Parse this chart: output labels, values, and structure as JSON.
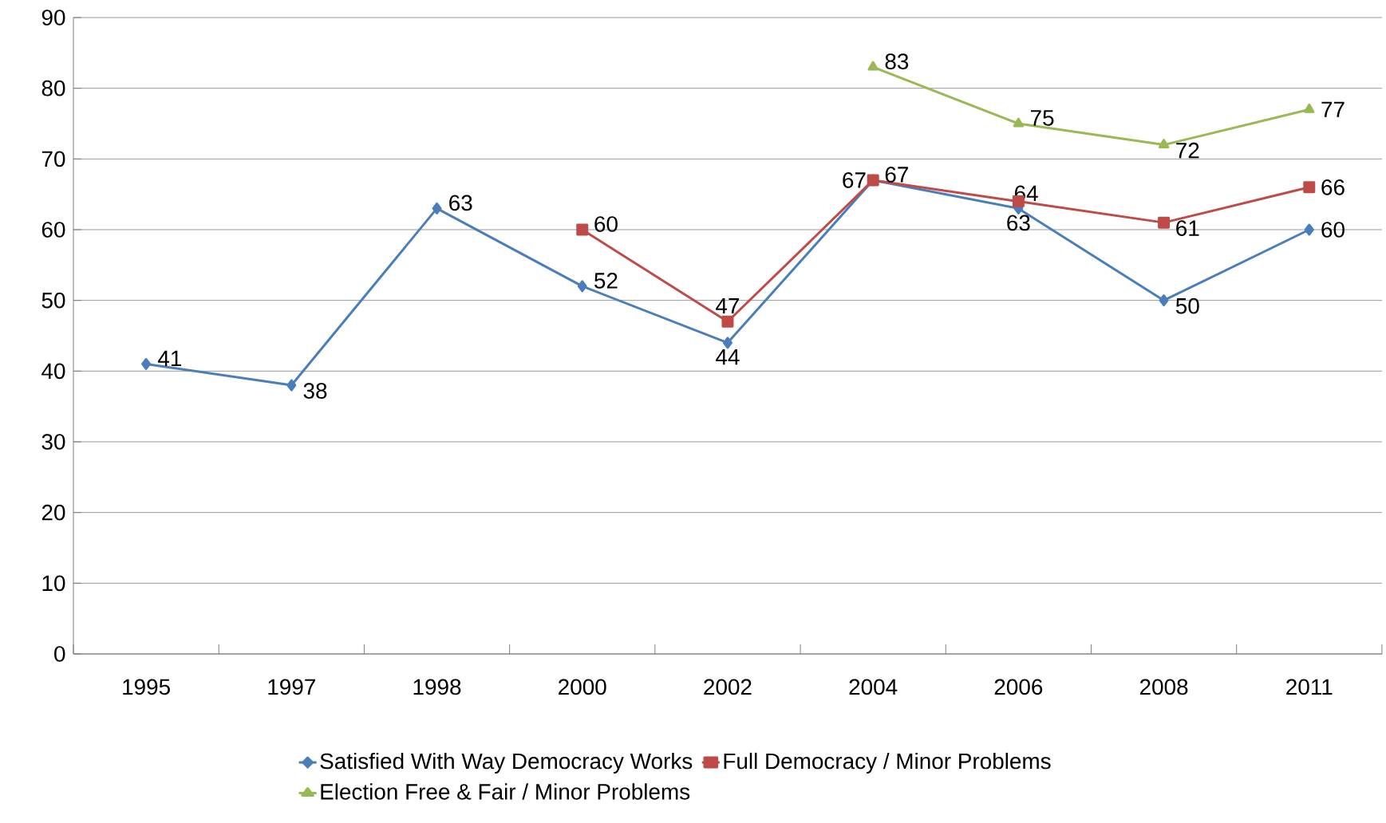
{
  "chart_data": {
    "type": "line",
    "categories": [
      "1995",
      "1997",
      "1998",
      "2000",
      "2002",
      "2004",
      "2006",
      "2008",
      "2011"
    ],
    "series": [
      {
        "name": "Satisfied With Way Democracy Works",
        "color": "#4a7ebb",
        "marker": "diamond",
        "values": [
          41,
          38,
          63,
          52,
          44,
          67,
          63,
          50,
          60
        ]
      },
      {
        "name": "Full Democracy / Minor Problems",
        "color": "#be4b48",
        "marker": "square",
        "values": [
          null,
          null,
          null,
          60,
          47,
          67,
          64,
          61,
          66
        ]
      },
      {
        "name": "Election Free & Fair / Minor Problems",
        "color": "#98b954",
        "marker": "triangle",
        "values": [
          null,
          null,
          null,
          null,
          null,
          83,
          75,
          72,
          77
        ]
      }
    ],
    "ylim": [
      0,
      90
    ],
    "yticks": [
      0,
      10,
      20,
      30,
      40,
      50,
      60,
      70,
      80,
      90
    ],
    "grid": "y",
    "legend": "bottom",
    "data_labels": true,
    "line_style": "solid"
  }
}
